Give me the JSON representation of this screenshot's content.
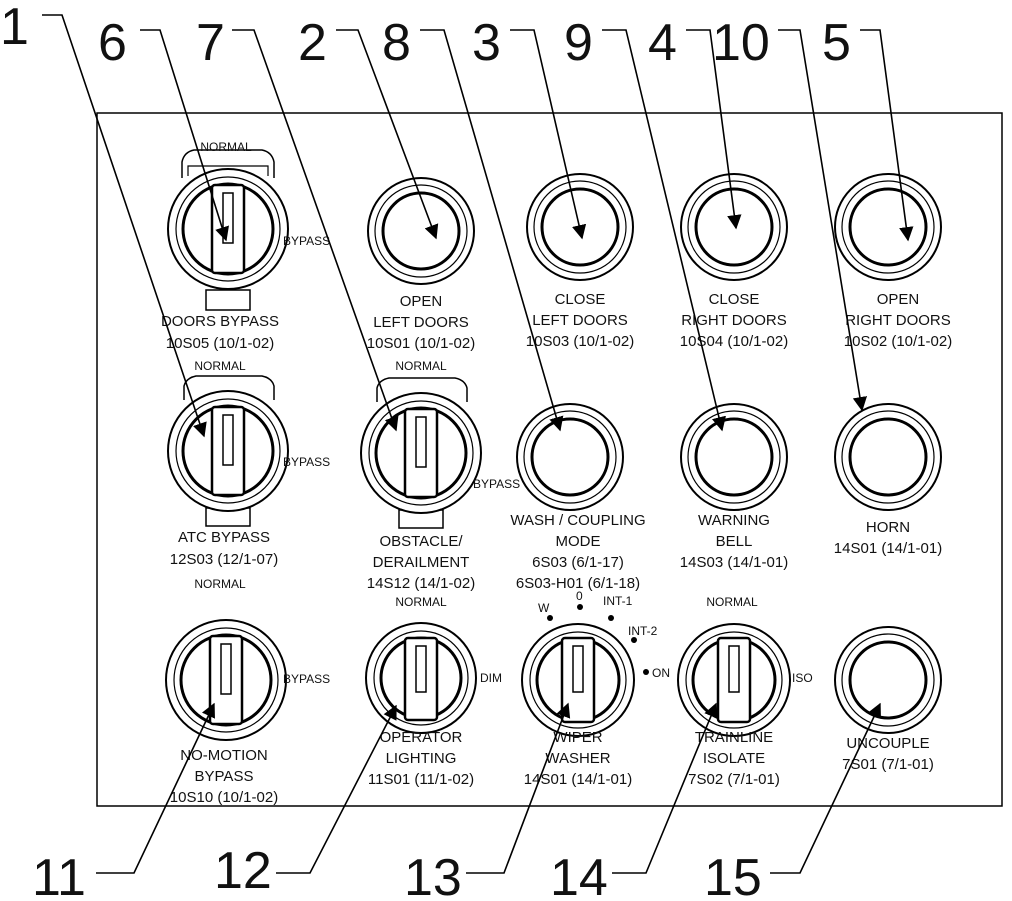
{
  "callouts": [
    "1",
    "6",
    "7",
    "2",
    "8",
    "3",
    "9",
    "4",
    "10",
    "5",
    "11",
    "12",
    "13",
    "14",
    "15"
  ],
  "controls": {
    "doors_bypass": {
      "normal": "NORMAL",
      "bypass": "BYPASS",
      "name": "DOORS  BYPASS",
      "code": "10S05 (10/1-02)"
    },
    "open_left": {
      "line1": "OPEN",
      "line2": "LEFT DOORS",
      "code": "10S01 (10/1-02)"
    },
    "close_left": {
      "line1": "CLOSE",
      "line2": "LEFT DOORS",
      "code": "10S03 (10/1-02)"
    },
    "close_right": {
      "line1": "CLOSE",
      "line2": "RIGHT DOORS",
      "code": "10S04 (10/1-02)"
    },
    "open_right": {
      "line1": "OPEN",
      "line2": "RIGHT DOORS",
      "code": "10S02 (10/1-02)"
    },
    "atc_bypass": {
      "normal": "NORMAL",
      "bypass": "BYPASS",
      "name": "ATC BYPASS",
      "code": "12S03 (12/1-07)"
    },
    "obstacle": {
      "normal": "NORMAL",
      "bypass": "BYPASS",
      "line1": "OBSTACLE/",
      "line2": "DERAILMENT",
      "code": "14S12 (14/1-02)"
    },
    "wash": {
      "line1": "WASH / COUPLING",
      "line2": "MODE",
      "code": "6S03 (6/1-17)",
      "code2": "6S03-H01 (6/1-18)"
    },
    "warning_bell": {
      "line1": "WARNING",
      "line2": "BELL",
      "code": "14S03 (14/1-01)"
    },
    "horn": {
      "name": "HORN",
      "code": "14S01 (14/1-01)"
    },
    "no_motion": {
      "normal": "NORMAL",
      "bypass": "BYPASS",
      "line1": "NO-MOTION",
      "line2": "BYPASS",
      "code": "10S10 (10/1-02)"
    },
    "operator_lighting": {
      "normal": "NORMAL",
      "dim": "DIM",
      "line1": "OPERATOR",
      "line2": "LIGHTING",
      "code": "11S01 (11/1-02)"
    },
    "wiper": {
      "w": "W",
      "zero": "0",
      "int1": "INT-1",
      "int2": "INT-2",
      "on": "ON",
      "line1": "WIPER",
      "line2": "WASHER",
      "code": "14S01 (14/1-01)"
    },
    "trainline": {
      "normal": "NORMAL",
      "iso": "ISO",
      "line1": "TRAINLINE",
      "line2": "ISOLATE",
      "code": "7S02 (7/1-01)"
    },
    "uncouple": {
      "name": "UNCOUPLE",
      "code": "7S01 (7/1-01)"
    }
  }
}
